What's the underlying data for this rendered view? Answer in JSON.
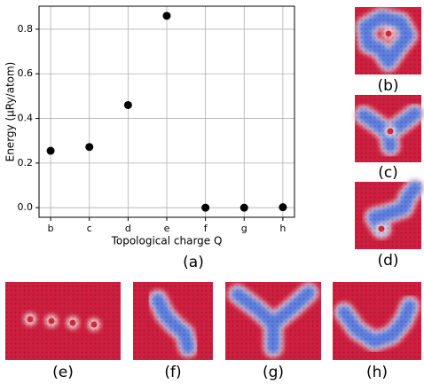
{
  "chart_data": {
    "type": "scatter",
    "categories": [
      "b",
      "c",
      "d",
      "e",
      "f",
      "g",
      "h"
    ],
    "values": [
      0.255,
      0.272,
      0.46,
      0.86,
      0.0,
      0.0,
      0.002
    ],
    "color": "#000000",
    "ylim": [
      -0.043,
      0.903
    ],
    "yticks": [
      {
        "value": 0,
        "label": "0.0"
      },
      0.2,
      0.4,
      0.6,
      0.8
    ],
    "xlabel": "Topological charge Q",
    "ylabel": "Energy (μRy/atom)",
    "grid": true,
    "label": "(a)"
  },
  "panels": [
    {
      "label": "(b)"
    },
    {
      "label": "(c)"
    },
    {
      "label": "(d)"
    },
    {
      "label": "(e)"
    },
    {
      "label": "(f)"
    },
    {
      "label": "(g)"
    },
    {
      "label": "(h)"
    }
  ]
}
